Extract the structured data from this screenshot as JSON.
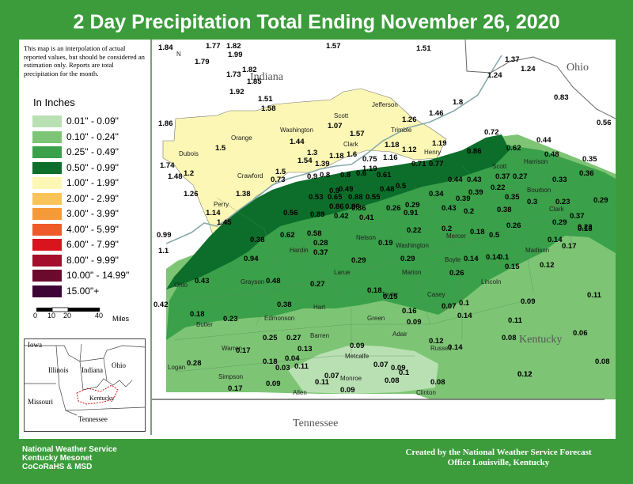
{
  "title": "2 Day Precipitation Total Ending November 26, 2020",
  "note": "This map is an interpolation of actual reported values, but should be considered an estimation only. Reports are total precipitation for the month.",
  "legend": {
    "title": "In Inches",
    "items": [
      {
        "label": "0.01\" - 0.09\"",
        "color": "#b9e0b3"
      },
      {
        "label": "0.10\" - 0.24\"",
        "color": "#7dc575"
      },
      {
        "label": "0.25\" - 0.49\"",
        "color": "#3aa04a"
      },
      {
        "label": "0.50\" - 0.99\"",
        "color": "#0c6e2a"
      },
      {
        "label": "1.00\" - 1.99\"",
        "color": "#fcf7b5"
      },
      {
        "label": "2.00\" - 2.99\"",
        "color": "#f8c45a"
      },
      {
        "label": "3.00\" - 3.99\"",
        "color": "#f59a38"
      },
      {
        "label": "4.00\" - 5.99\"",
        "color": "#ef5a2a"
      },
      {
        "label": "6.00\" - 7.99\"",
        "color": "#d8141d"
      },
      {
        "label": "8.00\" - 9.99\"",
        "color": "#a40e2a"
      },
      {
        "label": "10.00\" - 14.99\"",
        "color": "#6b0a2d"
      },
      {
        "label": "15.00\"+",
        "color": "#3d0436"
      }
    ]
  },
  "scale": {
    "ticks": [
      "0",
      "10",
      "20",
      "40"
    ],
    "unit": "Miles"
  },
  "inset": {
    "states": [
      "Iowa",
      "Illinois",
      "Indiana",
      "Ohio",
      "Missouri",
      "Kentucky",
      "Tennessee"
    ]
  },
  "states": {
    "indiana": "Indiana",
    "ohio": "Ohio",
    "kentucky": "Kentucky",
    "tennessee": "Tennessee"
  },
  "footer": {
    "left": [
      "National Weather Service",
      "Kentucky Mesonet",
      "CoCoRaHS & MSD"
    ],
    "right": [
      "Created by the National Weather Service Forecast",
      "Office Louisville, Kentucky"
    ]
  },
  "counties": [
    "Orange",
    "Washington",
    "Scott",
    "Jefferson",
    "Dubois",
    "Clark",
    "Trimble",
    "Henry",
    "Crawford",
    "Perry",
    "Harrison",
    "Scott",
    "Bourbon",
    "Clark",
    "Madison",
    "Mercer",
    "Boyle",
    "Lincoln",
    "Nelson",
    "Washington",
    "Marion",
    "Larue",
    "Hardin",
    "Grayson",
    "Ohio",
    "Taylor",
    "Casey",
    "Green",
    "Hart",
    "Edmonson",
    "Butler",
    "Adair",
    "Russell",
    "Warren",
    "Barren",
    "Metcalfe",
    "Logan",
    "Simpson",
    "Allen",
    "Monroe",
    "Clinton"
  ],
  "north_label": "N",
  "nws_label": "NATIONAL WEATHER SERVICE",
  "values": [
    "1.84",
    "1.77",
    "1.82",
    "1.57",
    "1.51",
    "1.99",
    "1.79",
    "1.73",
    "1.82",
    "1.85",
    "1.92",
    "1.51",
    "1.58",
    "1.37",
    "1.24",
    "1.24",
    "0.83",
    "1.8",
    "1.46",
    "0.56",
    "1.86",
    "1.07",
    "1.26",
    "1.57",
    "1.18",
    "1.12",
    "1.16",
    "1.19",
    "0.72",
    "0.86",
    "0.62",
    "0.44",
    "0.48",
    "0.35",
    "0.36",
    "1.5",
    "1.44",
    "1.74",
    "1.48",
    "1.2",
    "1.54",
    "1.39",
    "1.3",
    "1.18",
    "1.19",
    "1.6",
    "0.75",
    "0.71",
    "0.77",
    "0.8",
    "0.61",
    "0.6",
    "1.5",
    "0.73",
    "0.9",
    "0.8",
    "0.49",
    "0.48",
    "0.5",
    "0.34",
    "0.44",
    "0.43",
    "0.37",
    "0.27",
    "0.33",
    "0.39",
    "0.22",
    "0.35",
    "0.29",
    "0.53",
    "0.9",
    "0.65",
    "0.88",
    "0.55",
    "0.29",
    "0.26",
    "0.43",
    "0.39",
    "0.38",
    "0.3",
    "0.23",
    "1.26",
    "1.38",
    "0.86",
    "0.56",
    "0.89",
    "0.42",
    "0.86",
    "0.36",
    "0.41",
    "0.91",
    "0.2",
    "0.18",
    "0.5",
    "0.26",
    "0.37",
    "1.14",
    "1.45",
    "0.38",
    "0.62",
    "0.58",
    "0.28",
    "0.37",
    "0.19",
    "0.22",
    "0.2",
    "0.29",
    "0.14",
    "0.23",
    "0.18",
    "0.99",
    "1.1",
    "0.94",
    "0.29",
    "0.29",
    "0.14",
    "0.14",
    "0.1",
    "0.17",
    "0.12",
    "0.43",
    "0.48",
    "0.27",
    "0.26",
    "0.15",
    "0.42",
    "0.38",
    "0.15",
    "0.16",
    "0.07",
    "0.1",
    "0.09",
    "0.11",
    "0.18",
    "0.23",
    "0.18",
    "0.09",
    "0.14",
    "0.11",
    "0.25",
    "0.27",
    "0.09",
    "0.08",
    "0.06",
    "0.17",
    "0.13",
    "0.12",
    "0.08",
    "0.14",
    "0.09",
    "0.28",
    "0.18",
    "0.04",
    "0.07",
    "0.12",
    "0.03",
    "0.11",
    "0.07",
    "0.08",
    "0.1",
    "0.17",
    "0.09",
    "0.11",
    "0.09",
    "0.08",
    "0.12"
  ]
}
